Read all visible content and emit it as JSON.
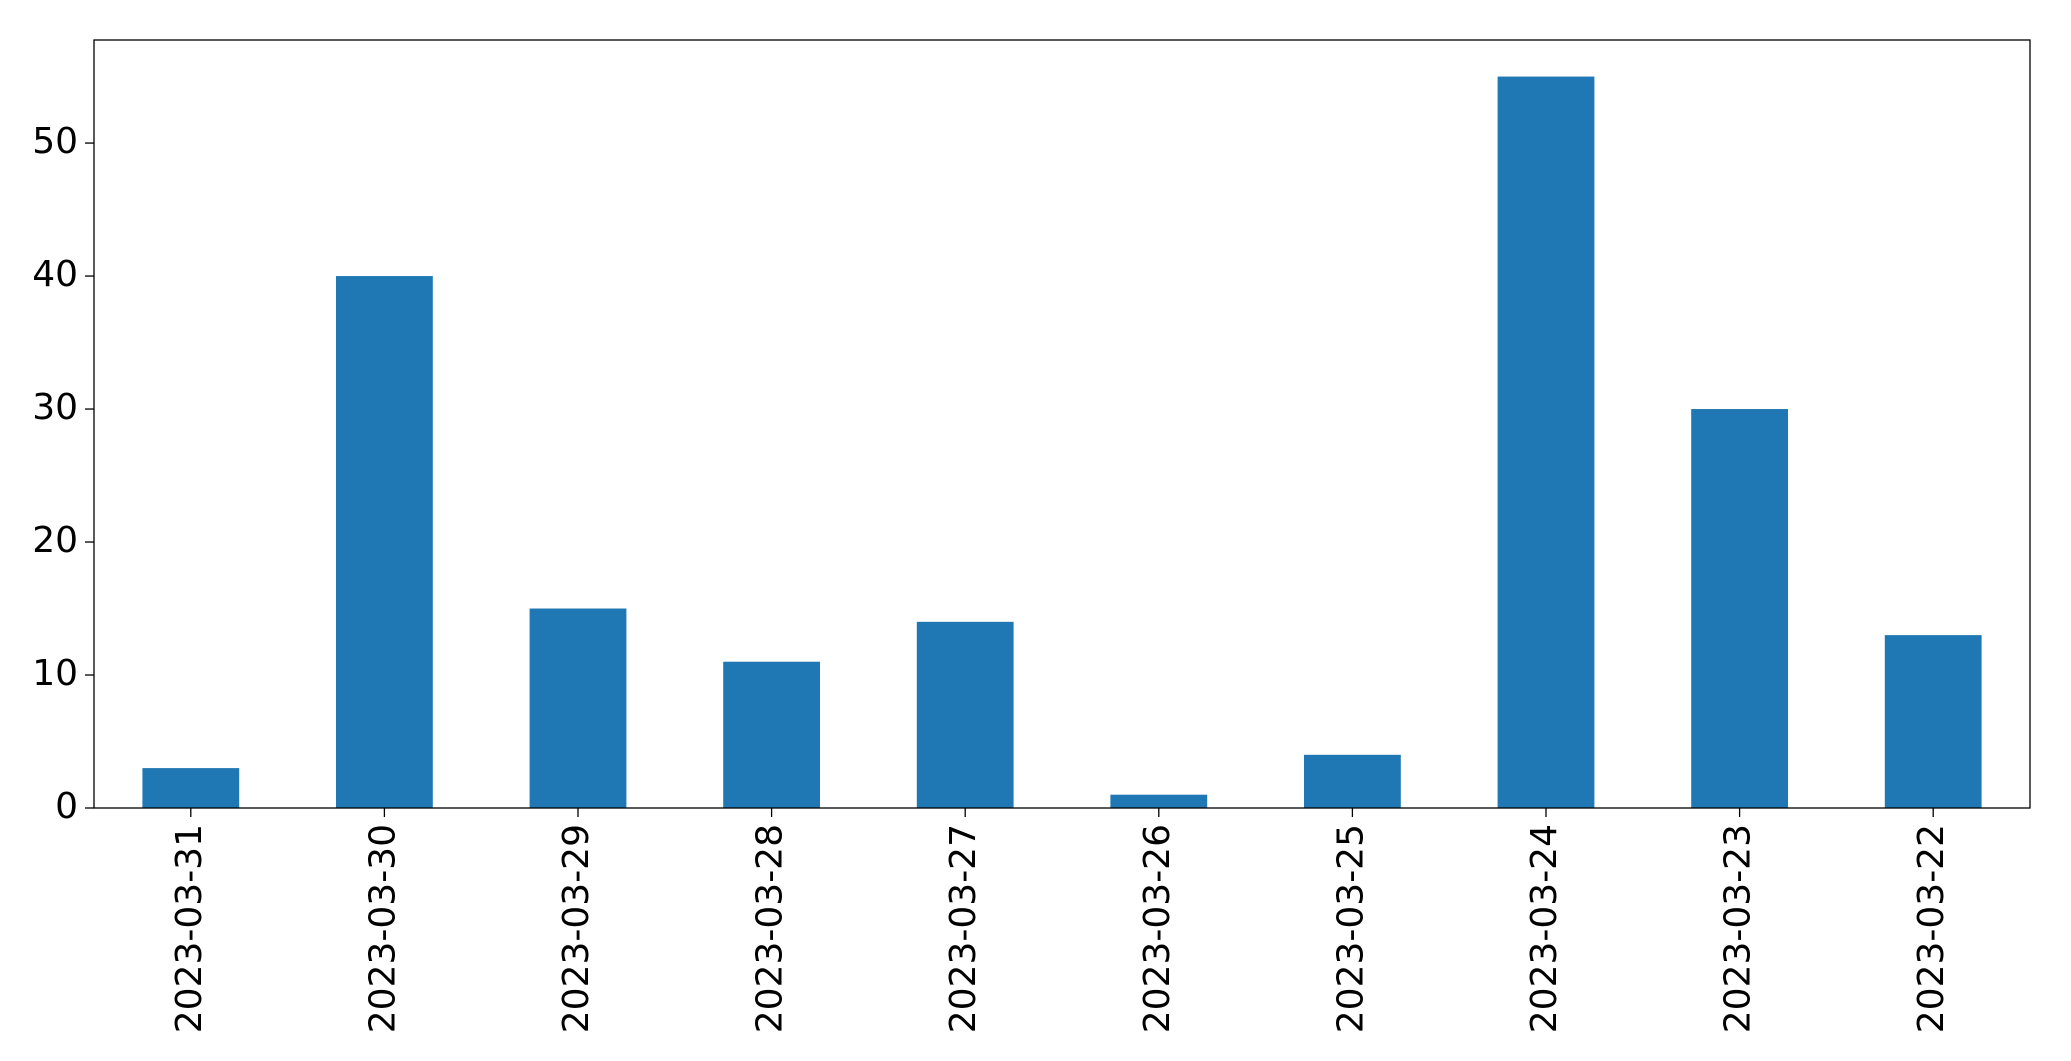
{
  "chart_data": {
    "type": "bar",
    "categories": [
      "2023-03-31",
      "2023-03-30",
      "2023-03-29",
      "2023-03-28",
      "2023-03-27",
      "2023-03-26",
      "2023-03-25",
      "2023-03-24",
      "2023-03-23",
      "2023-03-22"
    ],
    "values": [
      3,
      40,
      15,
      11,
      14,
      1,
      4,
      55,
      30,
      13
    ],
    "color": "#1f77b4",
    "ylim": [
      0,
      57.75
    ],
    "yticks": [
      0,
      10,
      20,
      30,
      40,
      50
    ],
    "grid": false
  }
}
